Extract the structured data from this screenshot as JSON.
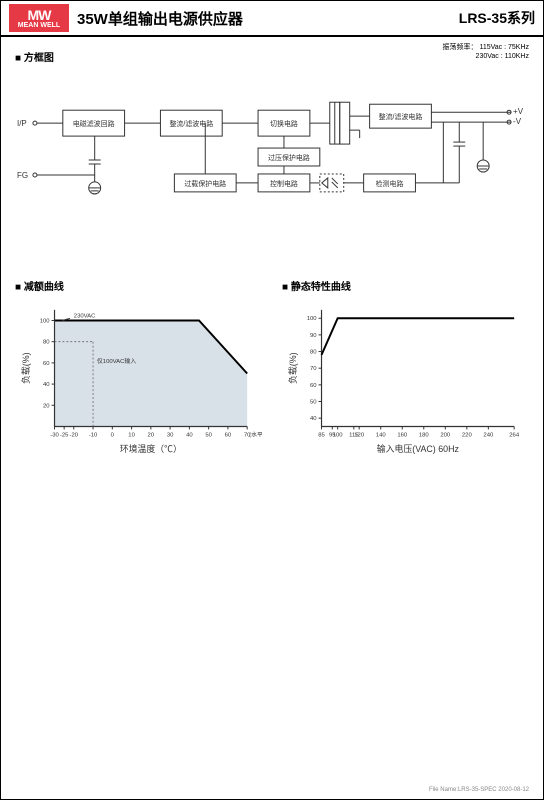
{
  "header": {
    "logo_top": "MW",
    "logo_bottom": "MEAN WELL",
    "title": "35W单组输出电源供应器",
    "series": "LRS-35系列"
  },
  "block_diagram": {
    "title": "方框图",
    "freq_label": "振荡频率：",
    "freq1": "115Vac : 75KHz",
    "freq2": "230Vac : 110KHz",
    "ip_label": "I/P",
    "fg_label": "FG",
    "out_plus": "+V",
    "out_minus": "-V",
    "blocks": {
      "emi": "电磁滤波回路",
      "rect1": "整流/滤波电路",
      "switch": "切换电路",
      "rect2": "整流/滤波电路",
      "ovp": "过压保护电路",
      "olp": "过载保护电路",
      "ctrl": "控制电路",
      "detect": "检测电路"
    }
  },
  "chart_derating": {
    "title": "减额曲线",
    "fill_color": "#d8e0e8",
    "line_color": "#000000",
    "background": "#ffffff",
    "ylabel": "负载(%)",
    "xlabel": "环境温度（℃）",
    "xunit": "(水平)",
    "note_230": "230VAC",
    "note_100": "仅100VAC输入",
    "y_ticks": [
      20,
      40,
      60,
      80,
      100
    ],
    "x_ticks": [
      -30,
      -25,
      -20,
      -10,
      0,
      10,
      20,
      30,
      40,
      50,
      60,
      70
    ],
    "xlim": [
      -30,
      70
    ],
    "ylim": [
      0,
      110
    ],
    "curve_main": [
      [
        -30,
        100
      ],
      [
        45,
        100
      ],
      [
        70,
        50
      ]
    ],
    "curve_100v": [
      [
        -10,
        80
      ],
      [
        -10,
        100
      ]
    ]
  },
  "chart_static": {
    "title": "静态特性曲线",
    "line_color": "#000000",
    "background": "#ffffff",
    "ylabel": "负载(%)",
    "xlabel": "输入电压(VAC) 60Hz",
    "y_ticks": [
      40,
      50,
      60,
      70,
      80,
      90,
      100
    ],
    "x_ticks": [
      85,
      95,
      100,
      115,
      120,
      140,
      160,
      180,
      200,
      220,
      240,
      264
    ],
    "xlim": [
      85,
      264
    ],
    "ylim": [
      35,
      105
    ],
    "curve": [
      [
        85,
        78
      ],
      [
        100,
        100
      ],
      [
        264,
        100
      ]
    ]
  },
  "footer": "File Name:LRS-35-SPEC 2020-08-12"
}
